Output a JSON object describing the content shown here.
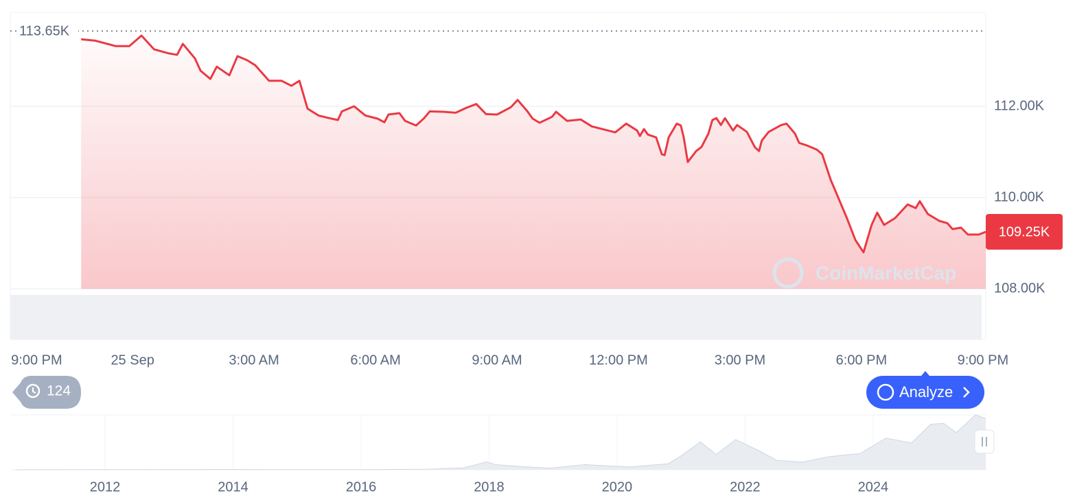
{
  "chart_data": [
    {
      "type": "line",
      "color": "#ea3943",
      "x": [
        -1.27,
        -0.93,
        -0.42,
        -0.08,
        0.22,
        0.53,
        0.9,
        1.1,
        1.24,
        1.54,
        1.68,
        1.92,
        2.08,
        2.39,
        2.59,
        2.83,
        3.03,
        3.37,
        3.68,
        3.92,
        4.12,
        4.32,
        4.59,
        4.86,
        5.07,
        5.17,
        5.47,
        5.75,
        6.05,
        6.22,
        6.32,
        6.59,
        6.73,
        7.0,
        7.2,
        7.34,
        7.68,
        7.98,
        8.25,
        8.49,
        8.73,
        9.0,
        9.34,
        9.51,
        9.75,
        9.88,
        10.05,
        10.36,
        10.46,
        10.73,
        11.07,
        11.34,
        11.61,
        11.92,
        12.19,
        12.46,
        12.53,
        12.63,
        12.73,
        12.93,
        13.07,
        13.14,
        13.24,
        13.44,
        13.54,
        13.61,
        13.71,
        13.92,
        14.05,
        14.22,
        14.32,
        14.42,
        14.53,
        14.63,
        14.83,
        14.93,
        15.17,
        15.37,
        15.47,
        15.54,
        15.71,
        16.02,
        16.15,
        16.36,
        16.46,
        16.66,
        16.9,
        17.03,
        17.24,
        17.44,
        17.64,
        17.85,
        18.05,
        18.25,
        18.39,
        18.56,
        18.83,
        19.14,
        19.34,
        19.44,
        19.64,
        19.92,
        20.12,
        20.25,
        20.46,
        20.63,
        20.9,
        21.07
      ],
      "values": [
        113470,
        113440,
        113320,
        113320,
        113550,
        113250,
        113160,
        113130,
        113370,
        113050,
        112780,
        112600,
        112870,
        112680,
        113100,
        113010,
        112900,
        112560,
        112560,
        112450,
        112560,
        111950,
        111800,
        111740,
        111700,
        111890,
        112000,
        111800,
        111730,
        111650,
        111820,
        111850,
        111680,
        111580,
        111740,
        111890,
        111880,
        111860,
        111970,
        112050,
        111830,
        111820,
        111980,
        112140,
        111890,
        111730,
        111640,
        111770,
        111880,
        111680,
        111710,
        111560,
        111500,
        111430,
        111620,
        111470,
        111350,
        111500,
        111380,
        111320,
        110950,
        110930,
        111320,
        111620,
        111580,
        111320,
        110780,
        111020,
        111110,
        111400,
        111700,
        111740,
        111590,
        111740,
        111470,
        111590,
        111440,
        111100,
        111020,
        111250,
        111440,
        111590,
        111620,
        111400,
        111200,
        111140,
        111050,
        110950,
        110390,
        109970,
        109550,
        109070,
        108800,
        109400,
        109670,
        109400,
        109550,
        109850,
        109770,
        109920,
        109640,
        109490,
        109440,
        109310,
        109340,
        109190,
        109190,
        109250
      ],
      "xlim": [
        -3.02,
        21.07
      ],
      "xticks": [
        {
          "value": -3,
          "label": "9:00 PM"
        },
        {
          "value": 0,
          "label": "25 Sep"
        },
        {
          "value": 3,
          "label": "3:00 AM"
        },
        {
          "value": 6,
          "label": "6:00 AM"
        },
        {
          "value": 9,
          "label": "9:00 AM"
        },
        {
          "value": 12,
          "label": "12:00 PM"
        },
        {
          "value": 15,
          "label": "3:00 PM"
        },
        {
          "value": 18,
          "label": "6:00 PM"
        },
        {
          "value": 21,
          "label": "9:00 PM"
        }
      ],
      "ylim": [
        106890,
        114060
      ],
      "yticks": [
        {
          "value": 108000,
          "label": "108.00K"
        },
        {
          "value": 110000,
          "label": "110.00K"
        },
        {
          "value": 112000,
          "label": "112.00K"
        }
      ],
      "grid": true,
      "reference_line": {
        "value": 113650,
        "label": "113.65K"
      },
      "current_price": {
        "value": 109250,
        "label": "109.25K",
        "color": "#ea3943"
      }
    },
    {
      "type": "area",
      "color": "#e9ecf1",
      "x": [
        2010.6,
        2013.9,
        2014.5,
        2016.0,
        2017.0,
        2017.6,
        2017.96,
        2018.1,
        2018.5,
        2018.95,
        2019.5,
        2020.2,
        2020.8,
        2021.0,
        2021.3,
        2021.55,
        2021.85,
        2022.2,
        2022.5,
        2022.9,
        2023.3,
        2023.8,
        2024.2,
        2024.6,
        2024.9,
        2025.1,
        2025.3,
        2025.6,
        2025.76
      ],
      "values": [
        0,
        800,
        500,
        430,
        1000,
        4000,
        17000,
        11000,
        7000,
        3500,
        11000,
        6000,
        13000,
        30000,
        60000,
        33000,
        65000,
        42000,
        20000,
        16500,
        28000,
        35000,
        68000,
        58000,
        98000,
        100000,
        80000,
        118000,
        110000
      ],
      "xlim": [
        2010.52,
        2025.76
      ],
      "ylim": [
        0,
        118000
      ],
      "xticks": [
        2012,
        2014,
        2016,
        2018,
        2020,
        2022,
        2024
      ]
    }
  ],
  "ui": {
    "history_count": 124,
    "analyze": "Analyze",
    "watermark": "CoinMarketCap"
  }
}
